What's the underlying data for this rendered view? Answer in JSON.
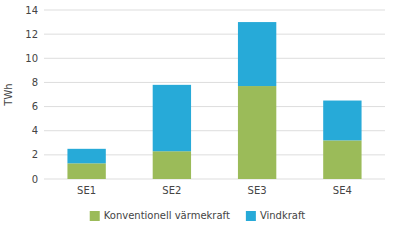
{
  "chart_data": {
    "type": "bar",
    "stacked": true,
    "categories": [
      "SE1",
      "SE2",
      "SE3",
      "SE4"
    ],
    "series": [
      {
        "name": "Konventionell värmekraft",
        "color": "#9BBB59",
        "values": [
          1.3,
          2.3,
          7.7,
          3.2
        ]
      },
      {
        "name": "Vindkraft",
        "color": "#27AAD8",
        "values": [
          1.2,
          5.5,
          5.3,
          3.3
        ]
      }
    ],
    "ylabel": "TWh",
    "ylim": [
      0,
      14
    ],
    "yticks": [
      0,
      2,
      4,
      6,
      8,
      10,
      12,
      14
    ],
    "grid": true,
    "legend": "bottom"
  }
}
